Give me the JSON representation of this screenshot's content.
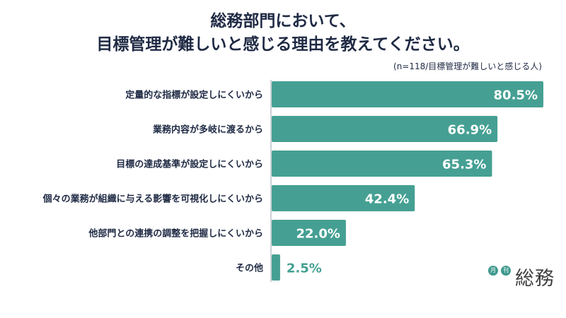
{
  "chart_data": {
    "type": "bar",
    "orientation": "horizontal",
    "title_lines": [
      "総務部門において、",
      "目標管理が難しいと感じる理由を教えてください。"
    ],
    "subtitle": "(n=118/目標管理が難しいと感じる人)",
    "categories": [
      "定量的な指標が設定しにくいから",
      "業務内容が多岐に渡るから",
      "目標の達成基準が設定しにくいから",
      "個々の業務が組織に与える影響を可視化しにくいから",
      "他部門との連携の調整を把握しにくいから",
      "その他"
    ],
    "values": [
      80.5,
      66.9,
      65.3,
      42.4,
      22.0,
      2.5
    ],
    "value_labels": [
      "80.5%",
      "66.9%",
      "65.3%",
      "42.4%",
      "22.0%",
      "2.5%"
    ],
    "xlim": [
      0,
      100
    ],
    "bar_color": "#45a093",
    "value_label_inside_color": "#ffffff",
    "value_label_outside_color": "#45a093",
    "grid": false
  },
  "logo": {
    "badge1": "月",
    "badge2": "刊",
    "word": "総務"
  }
}
